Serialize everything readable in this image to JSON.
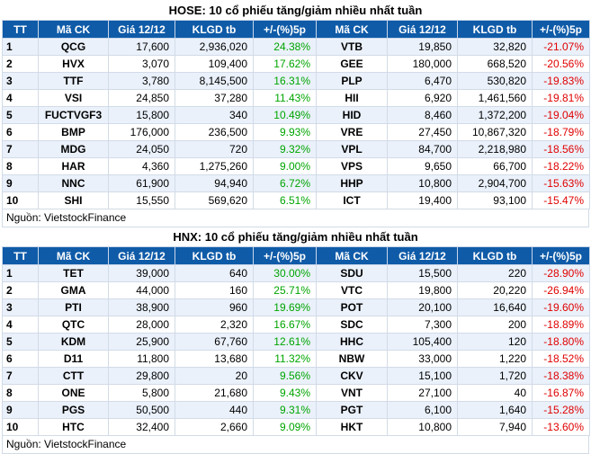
{
  "hose": {
    "title": "HOSE: 10 cổ phiếu tăng/giảm nhiều nhất tuần",
    "headers": [
      "TT",
      "Mã CK",
      "Giá 12/12",
      "KLGD tb",
      "+/-(%)5p",
      "Mã CK",
      "Giá 12/12",
      "KLGD tb",
      "+/-(%)5p"
    ],
    "rows": [
      [
        "1",
        "QCG",
        "17,600",
        "2,936,020",
        "24.38%",
        "VTB",
        "19,850",
        "32,820",
        "-21.07%"
      ],
      [
        "2",
        "HVX",
        "3,070",
        "109,400",
        "17.62%",
        "GEE",
        "180,000",
        "668,520",
        "-20.56%"
      ],
      [
        "3",
        "TTF",
        "3,780",
        "8,145,500",
        "16.31%",
        "PLP",
        "6,470",
        "530,820",
        "-19.83%"
      ],
      [
        "4",
        "VSI",
        "24,850",
        "37,280",
        "11.43%",
        "HII",
        "6,920",
        "1,461,560",
        "-19.81%"
      ],
      [
        "5",
        "FUCTVGF3",
        "15,800",
        "340",
        "10.49%",
        "HID",
        "8,460",
        "1,372,200",
        "-19.04%"
      ],
      [
        "6",
        "BMP",
        "176,000",
        "236,500",
        "9.93%",
        "VRE",
        "27,450",
        "10,867,320",
        "-18.79%"
      ],
      [
        "7",
        "MDG",
        "24,050",
        "720",
        "9.32%",
        "VPL",
        "84,700",
        "2,218,980",
        "-18.56%"
      ],
      [
        "8",
        "HAR",
        "4,360",
        "1,275,260",
        "9.00%",
        "VPS",
        "9,650",
        "66,700",
        "-18.22%"
      ],
      [
        "9",
        "NNC",
        "61,900",
        "94,940",
        "6.72%",
        "HHP",
        "10,800",
        "2,904,700",
        "-15.63%"
      ],
      [
        "10",
        "SHI",
        "15,550",
        "569,620",
        "6.51%",
        "ICT",
        "19,400",
        "93,100",
        "-15.47%"
      ]
    ],
    "source": "Nguồn: VietstockFinance"
  },
  "hnx": {
    "title": "HNX: 10 cổ phiếu tăng/giảm nhiều nhất tuần",
    "headers": [
      "TT",
      "Mã CK",
      "Giá 12/12",
      "KLGD tb",
      "+/-(%)5p",
      "Mã CK",
      "Giá 12/12",
      "KLGD tb",
      "+/-(%)5p"
    ],
    "rows": [
      [
        "1",
        "TET",
        "39,000",
        "640",
        "30.00%",
        "SDU",
        "15,500",
        "220",
        "-28.90%"
      ],
      [
        "2",
        "GMA",
        "44,000",
        "160",
        "25.71%",
        "VTC",
        "19,800",
        "20,220",
        "-26.94%"
      ],
      [
        "3",
        "PTI",
        "38,900",
        "960",
        "19.69%",
        "POT",
        "20,100",
        "16,640",
        "-19.60%"
      ],
      [
        "4",
        "QTC",
        "28,000",
        "2,320",
        "16.67%",
        "SDC",
        "7,300",
        "200",
        "-18.89%"
      ],
      [
        "5",
        "KDM",
        "25,900",
        "67,760",
        "12.61%",
        "HHC",
        "105,400",
        "120",
        "-18.80%"
      ],
      [
        "6",
        "D11",
        "11,800",
        "13,680",
        "11.32%",
        "NBW",
        "33,000",
        "1,220",
        "-18.52%"
      ],
      [
        "7",
        "CTT",
        "29,800",
        "20",
        "9.56%",
        "CKV",
        "15,100",
        "1,720",
        "-18.38%"
      ],
      [
        "8",
        "ONE",
        "5,800",
        "21,680",
        "9.43%",
        "VNT",
        "27,100",
        "40",
        "-16.87%"
      ],
      [
        "9",
        "PGS",
        "50,500",
        "440",
        "9.31%",
        "PGT",
        "6,100",
        "1,640",
        "-15.28%"
      ],
      [
        "10",
        "HTC",
        "32,400",
        "2,660",
        "9.09%",
        "HKT",
        "10,800",
        "7,940",
        "-13.60%"
      ]
    ],
    "source": "Nguồn: VietstockFinance"
  },
  "colors": {
    "header_bg": "#0f5ba8",
    "gain": "#00a500",
    "loss": "#e00000",
    "stripe": "#eaf1fb"
  }
}
